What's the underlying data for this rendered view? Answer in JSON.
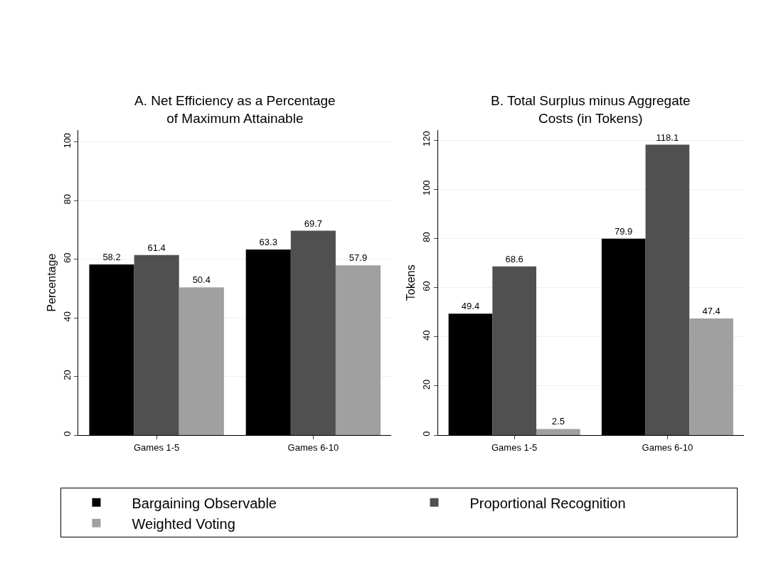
{
  "chart_data": [
    {
      "type": "bar",
      "title": "A. Net Efficiency as a Percentage of Maximum Attainable",
      "ylabel": "Percentage",
      "categories": [
        "Games 1-5",
        "Games 6-10"
      ],
      "series": [
        {
          "name": "Bargaining Observable",
          "color": "#000000",
          "values": [
            58.2,
            63.3
          ]
        },
        {
          "name": "Proportional Recognition",
          "color": "#505050",
          "values": [
            61.4,
            69.7
          ]
        },
        {
          "name": "Weighted Voting",
          "color": "#a0a0a0",
          "values": [
            50.4,
            57.9
          ]
        }
      ],
      "ylim": [
        0,
        104
      ],
      "yticks": [
        0,
        20,
        40,
        60,
        80,
        100
      ],
      "grid": "y",
      "legend": "bottom",
      "data_labels": true
    },
    {
      "type": "bar",
      "title": "B. Total Surplus minus Aggregate Costs (in Tokens)",
      "ylabel": "Tokens",
      "categories": [
        "Games 1-5",
        "Games 6-10"
      ],
      "series": [
        {
          "name": "Bargaining Observable",
          "color": "#000000",
          "values": [
            49.4,
            79.9
          ]
        },
        {
          "name": "Proportional Recognition",
          "color": "#505050",
          "values": [
            68.6,
            118.1
          ]
        },
        {
          "name": "Weighted Voting",
          "color": "#a0a0a0",
          "values": [
            2.5,
            47.4
          ]
        }
      ],
      "ylim": [
        0,
        124
      ],
      "yticks": [
        0,
        20,
        40,
        60,
        80,
        100,
        120
      ],
      "grid": "y",
      "legend": "bottom",
      "data_labels": true
    }
  ]
}
